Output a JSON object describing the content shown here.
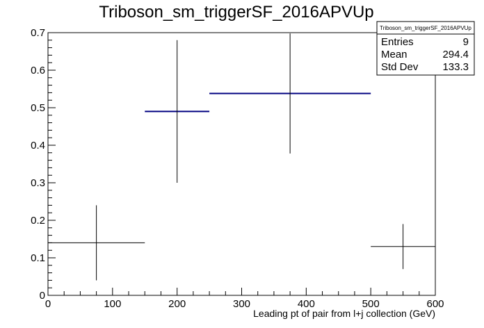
{
  "chart_data": {
    "type": "histogram",
    "title": "Triboson_sm_triggerSF_2016APVUp",
    "xlabel": "Leading pt of pair from l+j collection (GeV)",
    "ylabel": "",
    "xlim": [
      0,
      600
    ],
    "ylim": [
      0,
      0.7
    ],
    "x_ticks": [
      0,
      100,
      200,
      300,
      400,
      500,
      600
    ],
    "y_ticks": [
      0,
      0.1,
      0.2,
      0.3,
      0.4,
      0.5,
      0.6,
      0.7
    ],
    "x_tick_labels": [
      "0",
      "100",
      "200",
      "300",
      "400",
      "500",
      "600"
    ],
    "y_tick_labels": [
      "0",
      "0.1",
      "0.2",
      "0.3",
      "0.4",
      "0.5",
      "0.6",
      "0.7"
    ],
    "grid": false,
    "series": [
      {
        "bins": [
          {
            "xlow": 0,
            "xhigh": 150,
            "value": 0.14,
            "err_low": 0.1,
            "err_high": 0.1,
            "highlight": false
          },
          {
            "xlow": 150,
            "xhigh": 250,
            "value": 0.49,
            "err_low": 0.19,
            "err_high": 0.19,
            "highlight": true
          },
          {
            "xlow": 250,
            "xhigh": 500,
            "value": 0.538,
            "err_low": 0.16,
            "err_high": 0.16,
            "highlight": true
          },
          {
            "xlow": 500,
            "xhigh": 600,
            "value": 0.13,
            "err_low": 0.06,
            "err_high": 0.06,
            "highlight": false
          }
        ]
      }
    ],
    "stats_box": {
      "title": "Triboson_sm_triggerSF_2016APVUp",
      "rows": [
        {
          "label": "Entries",
          "value": "9"
        },
        {
          "label": "Mean",
          "value": "294.4"
        },
        {
          "label": "Std Dev",
          "value": "133.3"
        }
      ]
    },
    "colors": {
      "axis": "#000000",
      "marker": "#000000",
      "highlight": "#000080"
    }
  }
}
